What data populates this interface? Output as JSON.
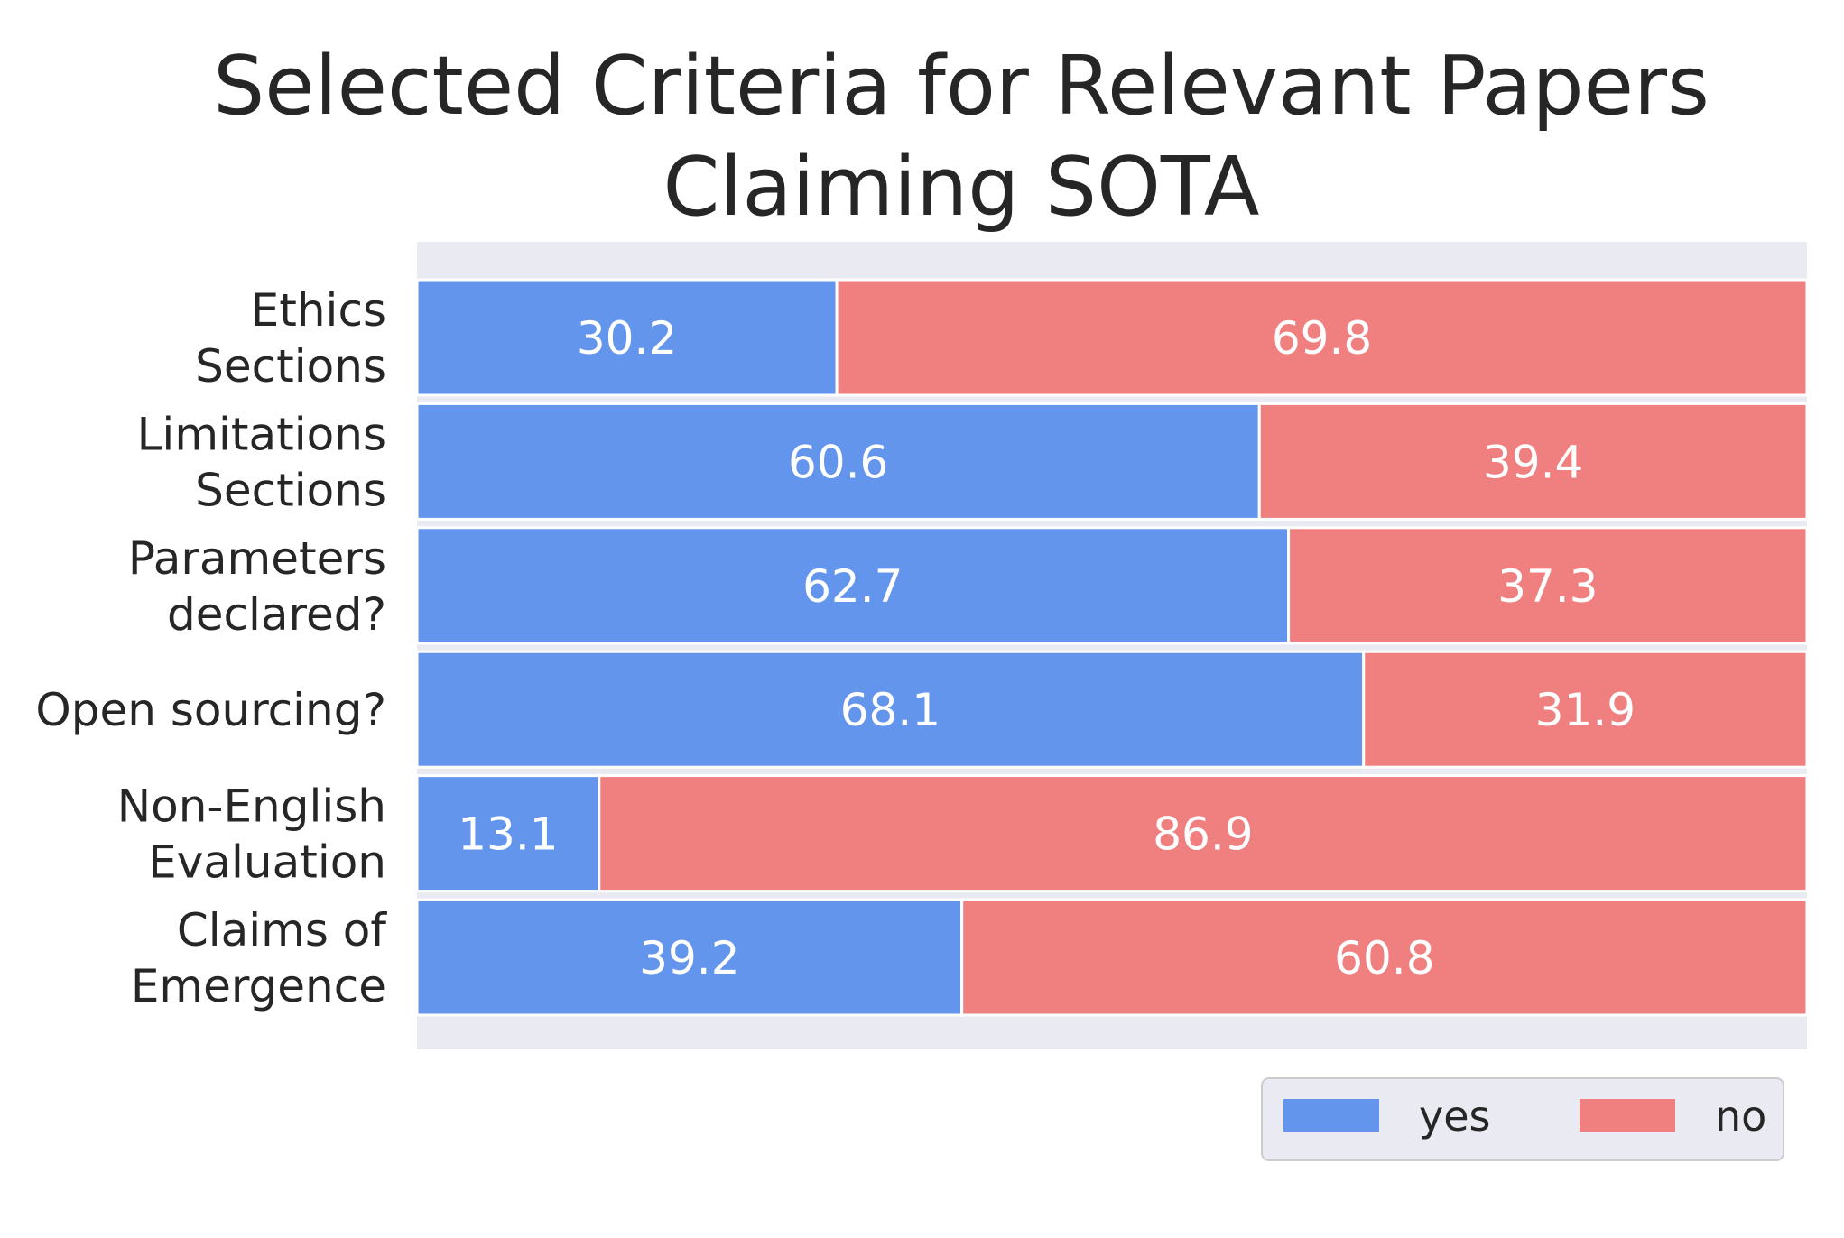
{
  "chart_data": {
    "type": "bar",
    "orientation": "horizontal",
    "stacked": true,
    "title": [
      "Selected Criteria for Relevant Papers",
      "Claiming SOTA"
    ],
    "xlabel": "",
    "ylabel": "",
    "xlim": [
      0,
      100
    ],
    "grid": false,
    "categories": [
      [
        "Ethics",
        "Sections"
      ],
      [
        "Limitations",
        "Sections"
      ],
      [
        "Parameters",
        "declared?"
      ],
      [
        "Open sourcing?"
      ],
      [
        "Non-English",
        "Evaluation"
      ],
      [
        "Claims of",
        "Emergence"
      ]
    ],
    "series": [
      {
        "name": "yes",
        "color": "#6495ED",
        "values": [
          30.2,
          60.6,
          62.7,
          68.1,
          13.1,
          39.2
        ]
      },
      {
        "name": "no",
        "color": "#F08080",
        "values": [
          69.8,
          39.4,
          37.3,
          31.9,
          86.9,
          60.8
        ]
      }
    ],
    "data_labels": true,
    "legend": {
      "placement": "bottom-right",
      "entries": [
        "yes",
        "no"
      ]
    },
    "colors": {
      "axes_background": "#EAEAF2",
      "bar_edge": "#ffffff"
    }
  }
}
